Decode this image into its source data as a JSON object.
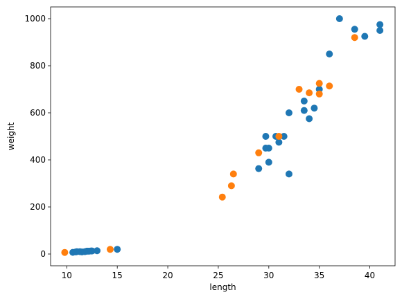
{
  "chart_data": {
    "type": "scatter",
    "xlabel": "length",
    "ylabel": "weight",
    "xlim": [
      8.4,
      42.5
    ],
    "ylim": [
      -50,
      1050
    ],
    "xticks": [
      10,
      15,
      20,
      25,
      30,
      35,
      40
    ],
    "yticks": [
      0,
      200,
      400,
      600,
      800,
      1000
    ],
    "grid": false,
    "series": [
      {
        "color": "#1f77b4",
        "points": [
          [
            10.6,
            7
          ],
          [
            10.9,
            9
          ],
          [
            11.0,
            10
          ],
          [
            11.3,
            10
          ],
          [
            11.5,
            9
          ],
          [
            11.8,
            10
          ],
          [
            12.0,
            12
          ],
          [
            12.2,
            12
          ],
          [
            12.4,
            13
          ],
          [
            12.5,
            13
          ],
          [
            13.0,
            14
          ],
          [
            15.0,
            20
          ],
          [
            29.0,
            363
          ],
          [
            29.7,
            500
          ],
          [
            29.7,
            450
          ],
          [
            30.0,
            450
          ],
          [
            30.0,
            390
          ],
          [
            30.7,
            500
          ],
          [
            31.0,
            475
          ],
          [
            31.5,
            500
          ],
          [
            32.0,
            600
          ],
          [
            32.0,
            340
          ],
          [
            33.5,
            610
          ],
          [
            33.5,
            650
          ],
          [
            34.0,
            575
          ],
          [
            34.5,
            620
          ],
          [
            35.0,
            700
          ],
          [
            36.0,
            850
          ],
          [
            37.0,
            1000
          ],
          [
            38.5,
            955
          ],
          [
            39.5,
            925
          ],
          [
            41.0,
            975
          ],
          [
            41.0,
            950
          ]
        ]
      },
      {
        "color": "#ff7f0e",
        "points": [
          [
            9.8,
            6.7
          ],
          [
            14.3,
            19.7
          ],
          [
            25.4,
            242
          ],
          [
            26.3,
            290
          ],
          [
            26.5,
            340
          ],
          [
            29.0,
            430
          ],
          [
            31.0,
            500
          ],
          [
            33.0,
            700
          ],
          [
            34.0,
            685
          ],
          [
            35.0,
            725
          ],
          [
            35.0,
            680
          ],
          [
            36.0,
            714
          ],
          [
            38.5,
            920
          ]
        ]
      }
    ]
  }
}
